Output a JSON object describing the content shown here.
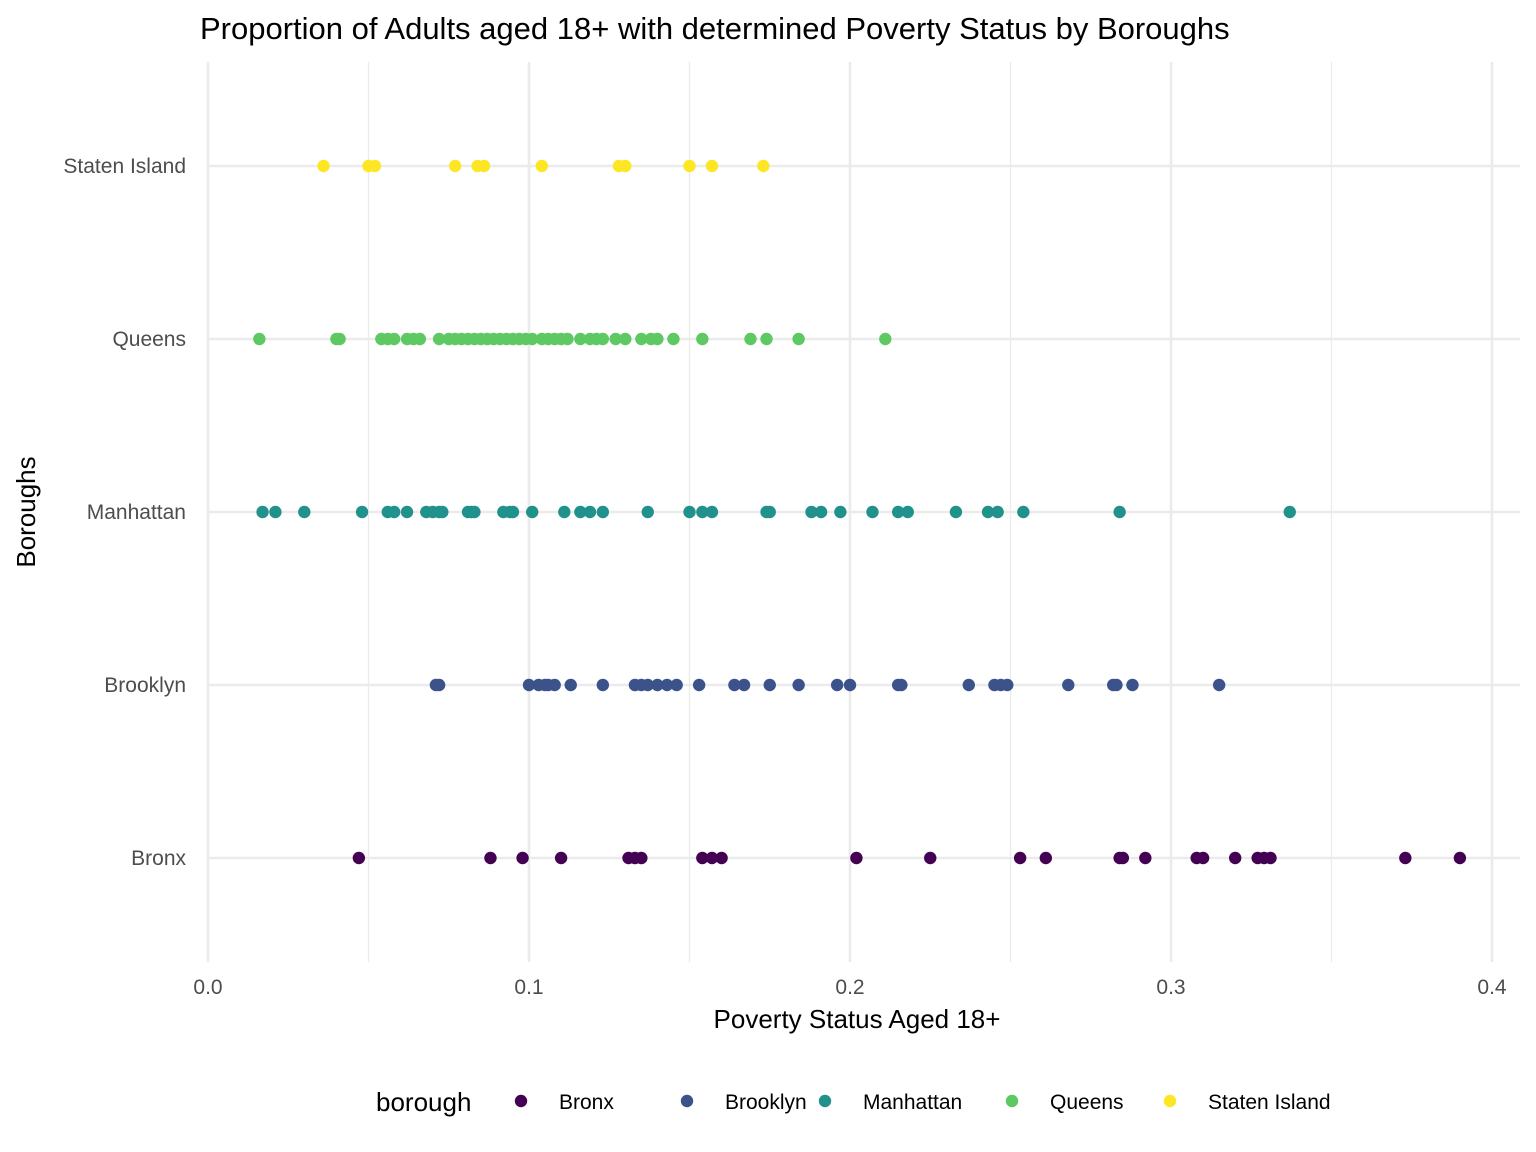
{
  "chart_data": {
    "type": "scatter",
    "title": "Proportion of Adults aged 18+ with determined Poverty Status by Boroughs",
    "xlabel": "Poverty Status Aged 18+",
    "ylabel": "Boroughs",
    "xlim": [
      0,
      0.4
    ],
    "x_ticks": [
      "0.0",
      "0.1",
      "0.2",
      "0.3",
      "0.4"
    ],
    "categories": [
      "Bronx",
      "Brooklyn",
      "Manhattan",
      "Queens",
      "Staten Island"
    ],
    "grid": true,
    "legend": {
      "title": "borough",
      "position": "bottom"
    },
    "series": [
      {
        "name": "Bronx",
        "color": "#440154",
        "values": [
          0.047,
          0.088,
          0.098,
          0.11,
          0.131,
          0.133,
          0.135,
          0.154,
          0.157,
          0.16,
          0.202,
          0.225,
          0.253,
          0.261,
          0.284,
          0.285,
          0.292,
          0.308,
          0.31,
          0.32,
          0.327,
          0.329,
          0.331,
          0.373,
          0.39
        ]
      },
      {
        "name": "Brooklyn",
        "color": "#3b528b",
        "values": [
          0.071,
          0.072,
          0.1,
          0.103,
          0.105,
          0.106,
          0.108,
          0.113,
          0.123,
          0.133,
          0.135,
          0.137,
          0.14,
          0.143,
          0.146,
          0.153,
          0.164,
          0.167,
          0.175,
          0.184,
          0.196,
          0.2,
          0.215,
          0.216,
          0.237,
          0.245,
          0.247,
          0.249,
          0.268,
          0.282,
          0.283,
          0.288,
          0.315
        ]
      },
      {
        "name": "Manhattan",
        "color": "#21918c",
        "values": [
          0.017,
          0.021,
          0.03,
          0.048,
          0.056,
          0.058,
          0.062,
          0.068,
          0.07,
          0.072,
          0.073,
          0.081,
          0.082,
          0.083,
          0.092,
          0.094,
          0.095,
          0.101,
          0.111,
          0.116,
          0.119,
          0.123,
          0.137,
          0.15,
          0.154,
          0.157,
          0.174,
          0.175,
          0.188,
          0.191,
          0.197,
          0.207,
          0.215,
          0.218,
          0.233,
          0.243,
          0.246,
          0.254,
          0.284,
          0.337
        ]
      },
      {
        "name": "Queens",
        "color": "#5ec962",
        "values": [
          0.016,
          0.04,
          0.041,
          0.054,
          0.056,
          0.058,
          0.062,
          0.064,
          0.066,
          0.072,
          0.075,
          0.077,
          0.079,
          0.081,
          0.083,
          0.085,
          0.087,
          0.089,
          0.091,
          0.093,
          0.095,
          0.097,
          0.099,
          0.101,
          0.104,
          0.106,
          0.108,
          0.11,
          0.112,
          0.116,
          0.119,
          0.121,
          0.123,
          0.127,
          0.13,
          0.135,
          0.138,
          0.14,
          0.145,
          0.154,
          0.169,
          0.174,
          0.184,
          0.211
        ]
      },
      {
        "name": "Staten Island",
        "color": "#fde725",
        "values": [
          0.036,
          0.05,
          0.052,
          0.077,
          0.084,
          0.086,
          0.104,
          0.128,
          0.13,
          0.15,
          0.157,
          0.173
        ]
      }
    ]
  }
}
